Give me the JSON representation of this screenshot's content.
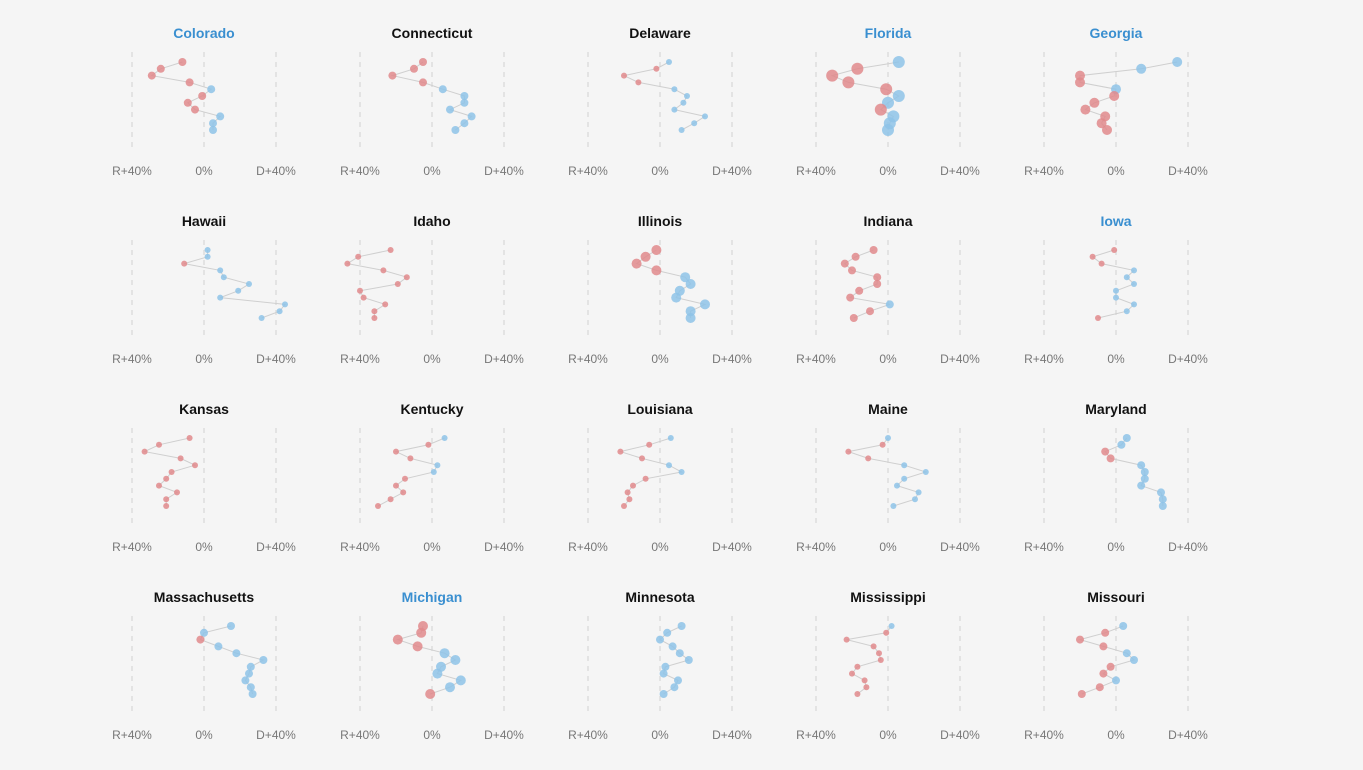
{
  "colors": {
    "dem": "#8ec3e8",
    "rep": "#e08a8c",
    "swing_title": "#3a8fd0",
    "title": "#111111",
    "connector": "#cfcfcf",
    "gridline": "#dddddd",
    "tick": "#777777"
  },
  "axis_ticks": [
    "R+40%",
    "0%",
    "D+40%"
  ],
  "chart_data": {
    "type": "scatter",
    "description": "Small multiples of state presidential margins; x = margin (negative = Republican, positive = Democratic), points stacked top to bottom",
    "xlim": [
      -40,
      40
    ],
    "tick_values": [
      -40,
      0,
      40
    ],
    "tick_labels": [
      "R+40%",
      "0%",
      "D+40%"
    ],
    "states": [
      {
        "name": "Colorado",
        "swing": true,
        "values": [
          -12,
          -24,
          -29,
          -8,
          4,
          -1,
          -9,
          -5,
          9,
          5,
          5
        ],
        "sizes": [
          4,
          4,
          4,
          4,
          4,
          4,
          4,
          4,
          4,
          4,
          4
        ]
      },
      {
        "name": "Connecticut",
        "swing": false,
        "values": [
          -5,
          -10,
          -22,
          -5,
          6,
          18,
          18,
          10,
          22,
          18,
          13
        ],
        "sizes": [
          4,
          4,
          4,
          4,
          4,
          4,
          4,
          4,
          4,
          4,
          4
        ]
      },
      {
        "name": "Delaware",
        "swing": false,
        "values": [
          5,
          -2,
          -20,
          -12,
          8,
          15,
          13,
          8,
          25,
          19,
          12
        ],
        "sizes": [
          3,
          3,
          3,
          3,
          3,
          3,
          3,
          3,
          3,
          3,
          3
        ]
      },
      {
        "name": "Florida",
        "swing": true,
        "values": [
          6,
          -17,
          -31,
          -22,
          -1,
          6,
          0,
          -4,
          3,
          1,
          0
        ],
        "sizes": [
          6,
          6,
          6,
          6,
          6,
          6,
          6,
          6,
          6,
          6,
          6
        ]
      },
      {
        "name": "Georgia",
        "swing": true,
        "values": [
          34,
          14,
          -20,
          -20,
          0,
          -1,
          -12,
          -17,
          -6,
          -8,
          -5
        ],
        "sizes": [
          5,
          5,
          5,
          5,
          5,
          5,
          5,
          5,
          5,
          5,
          5
        ]
      },
      {
        "name": "Hawaii",
        "swing": false,
        "values": [
          2,
          2,
          -11,
          9,
          11,
          25,
          19,
          9,
          45,
          42,
          32
        ],
        "sizes": [
          3,
          3,
          3,
          3,
          3,
          3,
          3,
          3,
          3,
          3,
          3
        ]
      },
      {
        "name": "Idaho",
        "swing": false,
        "values": [
          -23,
          -41,
          -47,
          -27,
          -14,
          -19,
          -40,
          -38,
          -26,
          -32,
          -32
        ],
        "sizes": [
          3,
          3,
          3,
          3,
          3,
          3,
          3,
          3,
          3,
          3,
          3
        ]
      },
      {
        "name": "Illinois",
        "swing": false,
        "values": [
          -2,
          -8,
          -13,
          -2,
          14,
          17,
          11,
          9,
          25,
          17,
          17
        ],
        "sizes": [
          5,
          5,
          5,
          5,
          5,
          5,
          5,
          5,
          5,
          5,
          5
        ]
      },
      {
        "name": "Indiana",
        "swing": false,
        "values": [
          -8,
          -18,
          -24,
          -20,
          -6,
          -6,
          -16,
          -21,
          1,
          -10,
          -19
        ],
        "sizes": [
          4,
          4,
          4,
          4,
          4,
          4,
          4,
          4,
          4,
          4,
          4
        ]
      },
      {
        "name": "Iowa",
        "swing": true,
        "values": [
          -1,
          -13,
          -8,
          10,
          6,
          10,
          0,
          0,
          10,
          6,
          -10
        ],
        "sizes": [
          3,
          3,
          3,
          3,
          3,
          3,
          3,
          3,
          3,
          3,
          3
        ]
      },
      {
        "name": "Kansas",
        "swing": false,
        "values": [
          -8,
          -25,
          -33,
          -13,
          -5,
          -18,
          -21,
          -25,
          -15,
          -21,
          -21
        ],
        "sizes": [
          3,
          3,
          3,
          3,
          3,
          3,
          3,
          3,
          3,
          3,
          3
        ]
      },
      {
        "name": "Kentucky",
        "swing": false,
        "values": [
          7,
          -2,
          -20,
          -12,
          3,
          1,
          -15,
          -20,
          -16,
          -23,
          -30
        ],
        "sizes": [
          3,
          3,
          3,
          3,
          3,
          3,
          3,
          3,
          3,
          3,
          3
        ]
      },
      {
        "name": "Louisiana",
        "swing": false,
        "values": [
          6,
          -6,
          -22,
          -10,
          5,
          12,
          -8,
          -15,
          -18,
          -17,
          -20
        ],
        "sizes": [
          3,
          3,
          3,
          3,
          3,
          3,
          3,
          3,
          3,
          3,
          3
        ]
      },
      {
        "name": "Maine",
        "swing": false,
        "values": [
          0,
          -3,
          -22,
          -11,
          9,
          21,
          9,
          5,
          17,
          15,
          3
        ],
        "sizes": [
          3,
          3,
          3,
          3,
          3,
          3,
          3,
          3,
          3,
          3,
          3
        ]
      },
      {
        "name": "Maryland",
        "swing": false,
        "values": [
          6,
          3,
          -6,
          -3,
          14,
          16,
          16,
          14,
          25,
          26,
          26
        ],
        "sizes": [
          4,
          4,
          4,
          4,
          4,
          4,
          4,
          4,
          4,
          4,
          4
        ]
      },
      {
        "name": "Massachusetts",
        "swing": false,
        "values": [
          15,
          0,
          -2,
          8,
          18,
          33,
          26,
          25,
          23,
          26,
          27
        ],
        "sizes": [
          4,
          4,
          4,
          4,
          4,
          4,
          4,
          4,
          4,
          4,
          4
        ]
      },
      {
        "name": "Michigan",
        "swing": true,
        "values": [
          -5,
          -6,
          -19,
          -8,
          7,
          13,
          5,
          3,
          16,
          10,
          -1
        ],
        "sizes": [
          5,
          5,
          5,
          5,
          5,
          5,
          5,
          5,
          5,
          5,
          5
        ]
      },
      {
        "name": "Minnesota",
        "swing": false,
        "values": [
          12,
          4,
          0,
          7,
          11,
          16,
          3,
          2,
          10,
          8,
          2
        ],
        "sizes": [
          4,
          4,
          4,
          4,
          4,
          4,
          4,
          4,
          4,
          4,
          4
        ]
      },
      {
        "name": "Mississippi",
        "swing": false,
        "values": [
          2,
          -1,
          -23,
          -8,
          -5,
          -4,
          -17,
          -20,
          -13,
          -12,
          -17
        ],
        "sizes": [
          3,
          3,
          3,
          3,
          3,
          3,
          3,
          3,
          3,
          3,
          3
        ]
      },
      {
        "name": "Missouri",
        "swing": false,
        "values": [
          4,
          -6,
          -20,
          -7,
          6,
          10,
          -3,
          -7,
          0,
          -9,
          -19
        ],
        "sizes": [
          4,
          4,
          4,
          4,
          4,
          4,
          4,
          4,
          4,
          4,
          4
        ]
      }
    ]
  }
}
